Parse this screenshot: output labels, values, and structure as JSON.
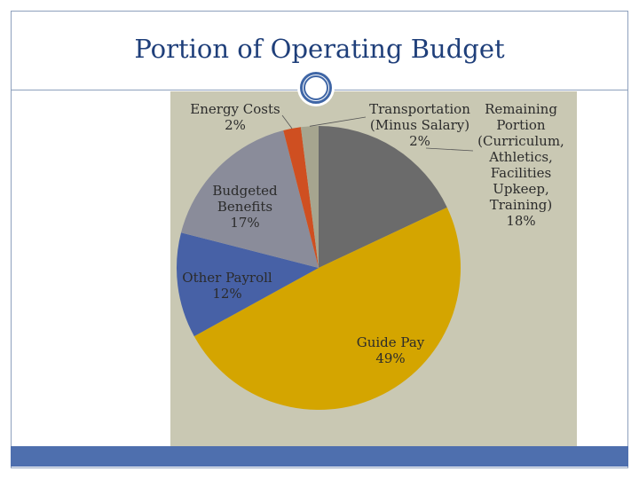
{
  "slide": {
    "title": "Portion of Operating Budget"
  },
  "chart_data": {
    "type": "pie",
    "slices": [
      {
        "label": [
          "Remaining",
          "Portion",
          "(Curriculum,",
          "Athletics,",
          "Facilities",
          "Upkeep,",
          "Training)"
        ],
        "pct_text": "18%",
        "value": 18,
        "color": "#6b6b6b"
      },
      {
        "label": [
          "Guide Pay"
        ],
        "pct_text": "49%",
        "value": 49,
        "color": "#d4a500"
      },
      {
        "label": [
          "Other Payroll"
        ],
        "pct_text": "12%",
        "value": 12,
        "color": "#4761a6"
      },
      {
        "label": [
          "Budgeted",
          "Benefits"
        ],
        "pct_text": "17%",
        "value": 17,
        "color": "#8a8c9a"
      },
      {
        "label": [
          "Energy Costs"
        ],
        "pct_text": "2%",
        "value": 2,
        "color": "#cf4f21"
      },
      {
        "label": [
          "Transportation",
          "(Minus Salary)"
        ],
        "pct_text": "2%",
        "value": 2,
        "color": "#a6a58f"
      }
    ]
  }
}
